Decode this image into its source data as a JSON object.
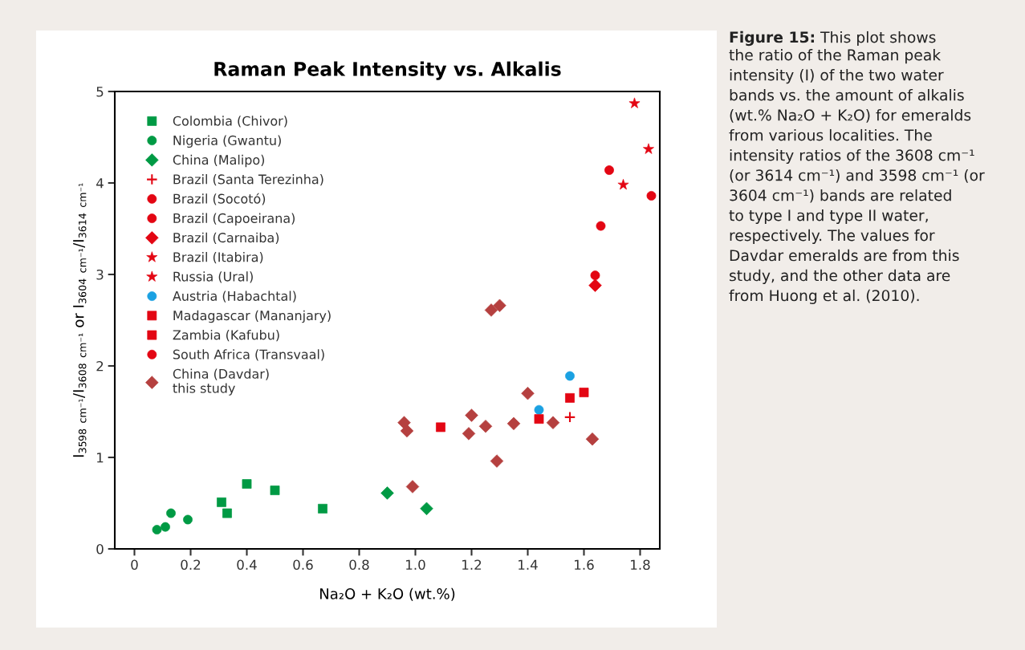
{
  "chart_data": {
    "type": "scatter",
    "title": "Raman Peak Intensity vs. Alkalis",
    "xlabel": "Na₂O + K₂O (wt.%)",
    "ylabel": "I$_{3598}$ $_{cm⁻¹}$/I$_{3608}$ $_{cm⁻¹}$ or I$_{3604}$ $_{cm⁻¹}$/I$_{3614}$ $_{cm⁻¹}$",
    "xlim": [
      -0.07,
      1.87
    ],
    "ylim": [
      0,
      5
    ],
    "xticks": [
      0,
      {
        "value": 0.2,
        "label": "0.2"
      },
      {
        "value": 0.4,
        "label": "0.4"
      },
      {
        "value": 0.6,
        "label": "0.6"
      },
      {
        "value": 0.8,
        "label": "0.8"
      },
      {
        "value": 1.0,
        "label": "1.0"
      },
      {
        "value": 1.2,
        "label": "1.2"
      },
      {
        "value": 1.4,
        "label": "1.4"
      },
      {
        "value": 1.6,
        "label": "1.6"
      },
      {
        "value": 1.8,
        "label": "1.8"
      }
    ],
    "yticks": [
      0,
      1,
      2,
      3,
      4,
      5
    ],
    "grid": false,
    "legend": "top left",
    "series": [
      {
        "name": "Colombia (Chivor)",
        "color": "#009a44",
        "marker": "square",
        "x": [
          0.31,
          0.33,
          0.4,
          0.5,
          0.67
        ],
        "values": [
          0.51,
          0.39,
          0.71,
          0.64,
          0.44
        ]
      },
      {
        "name": "Nigeria (Gwantu)",
        "color": "#009a44",
        "marker": "circle",
        "x": [
          0.08,
          0.11,
          0.13,
          0.19
        ],
        "values": [
          0.21,
          0.24,
          0.39,
          0.32
        ]
      },
      {
        "name": "China (Malipo)",
        "color": "#009a44",
        "marker": "diamond",
        "x": [
          0.9,
          1.04
        ],
        "values": [
          0.61,
          0.44
        ]
      },
      {
        "name": "Brazil (Santa Terezinha)",
        "color": "#e30613",
        "marker": "cross",
        "x": [
          1.55
        ],
        "values": [
          1.44
        ]
      },
      {
        "name": "Brazil (Socotó)",
        "color": "#e30613",
        "marker": "circle",
        "x": [
          1.69
        ],
        "values": [
          4.14
        ]
      },
      {
        "name": "Brazil (Capoeirana)",
        "color": "#e30613",
        "marker": "circle",
        "x": [
          1.64
        ],
        "values": [
          2.99
        ]
      },
      {
        "name": "Brazil (Carnaiba)",
        "color": "#e30613",
        "marker": "diamond",
        "x": [
          1.64
        ],
        "values": [
          2.88
        ]
      },
      {
        "name": "Brazil (Itabira)",
        "color": "#e30613",
        "marker": "star",
        "x": [
          1.78
        ],
        "values": [
          4.87
        ]
      },
      {
        "name": "Russia (Ural)",
        "color": "#e30613",
        "marker": "star",
        "x": [
          1.83,
          1.74
        ],
        "values": [
          4.37,
          3.98
        ]
      },
      {
        "name": "Austria (Habachtal)",
        "color": "#1ba1e2",
        "marker": "circle",
        "x": [
          1.55,
          1.44
        ],
        "values": [
          1.89,
          1.52
        ]
      },
      {
        "name": "Madagascar (Mananjary)",
        "color": "#e30613",
        "marker": "square",
        "x": [
          1.09,
          1.6
        ],
        "values": [
          1.33,
          1.71
        ]
      },
      {
        "name": "Zambia (Kafubu)",
        "color": "#e30613",
        "marker": "square",
        "x": [
          1.44,
          1.55
        ],
        "values": [
          1.42,
          1.65
        ]
      },
      {
        "name": "South Africa (Transvaal)",
        "color": "#e30613",
        "marker": "circle",
        "x": [
          1.84,
          1.66
        ],
        "values": [
          3.86,
          3.53
        ]
      },
      {
        "name": "China (Davdar)\nthis study",
        "color": "#b5403f",
        "marker": "diamond",
        "x": [
          0.99,
          0.96,
          0.97,
          1.2,
          1.19,
          1.25,
          1.35,
          1.29,
          1.4,
          1.49,
          1.63,
          1.27,
          1.3
        ],
        "values": [
          0.68,
          1.38,
          1.29,
          1.46,
          1.26,
          1.34,
          1.37,
          0.96,
          1.7,
          1.38,
          1.2,
          2.61,
          2.66
        ]
      }
    ],
    "annotations": [
      "Figure 15:",
      "This plot shows\nthe ratio of the Raman peak\nintensity (I) of the two water\nbands vs. the amount of alkalis\n(wt.% Na₂O + K₂O) for emeralds\nfrom various localities. The\nintensity ratios of the 3608 cm⁻¹\n(or 3614 cm⁻¹) and 3598 cm⁻¹ (or\n3604 cm⁻¹) bands are related\nto type I and type II water,\nrespectively. The values for\nDavdar emeralds are from this\nstudy, and the other data are\nfrom Huong et al. (2010)."
    ]
  }
}
